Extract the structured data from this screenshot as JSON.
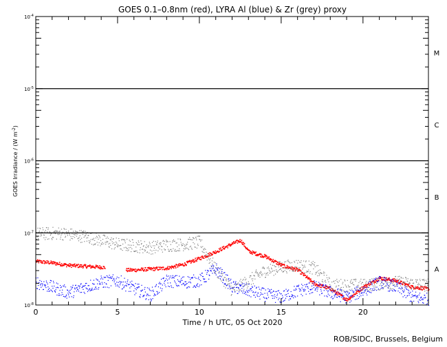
{
  "chart_data": {
    "type": "scatter",
    "title": "GOES 0.1–0.8nm (red), LYRA Al (blue) & Zr (grey) proxy",
    "xlabel": "Time / h UTC, 05 Oct 2020",
    "ylabel": "GOES Irradiance / (W m",
    "ylabel_sup": "-2",
    "ylabel_end": ")",
    "xlim": [
      0,
      24
    ],
    "ylim": [
      1e-08,
      0.0001
    ],
    "yscale": "log",
    "x_ticks": [
      0,
      5,
      10,
      15,
      20
    ],
    "x_tick_labels": [
      "0",
      "5",
      "10",
      "15",
      "20"
    ],
    "y_ticks": [
      0.0001,
      1e-05,
      1e-06,
      1e-07,
      1e-08
    ],
    "y_tick_labels": [
      {
        "base": "10",
        "exp": "-4"
      },
      {
        "base": "10",
        "exp": "-5"
      },
      {
        "base": "10",
        "exp": "-6"
      },
      {
        "base": "10",
        "exp": "-7"
      },
      {
        "base": "10",
        "exp": "-8"
      }
    ],
    "flare_class_lines": [
      1e-05,
      1e-06,
      1e-07
    ],
    "flare_classes": [
      {
        "label": "M",
        "value": 3.16e-05
      },
      {
        "label": "C",
        "value": 3.16e-06
      },
      {
        "label": "B",
        "value": 3.16e-07
      },
      {
        "label": "A",
        "value": 3.16e-08
      }
    ],
    "series": [
      {
        "name": "GOES 0.1-0.8nm",
        "color": "#ff0000",
        "gaps": [
          [
            4.2,
            5.5
          ]
        ],
        "x": [
          0,
          1,
          2,
          3,
          4,
          5.5,
          6,
          7,
          8,
          9,
          10,
          11,
          12,
          12.5,
          13,
          14,
          15,
          16,
          17,
          18,
          19,
          20,
          21,
          22,
          23,
          24
        ],
        "y": [
          4.1e-08,
          3.9e-08,
          3.6e-08,
          3.5e-08,
          3.4e-08,
          3.1e-08,
          3.1e-08,
          3.2e-08,
          3.3e-08,
          3.7e-08,
          4.5e-08,
          5.6e-08,
          7.2e-08,
          8e-08,
          5.6e-08,
          4.8e-08,
          3.6e-08,
          3.1e-08,
          2e-08,
          1.7e-08,
          1.2e-08,
          1.8e-08,
          2.4e-08,
          2.2e-08,
          1.8e-08,
          1.7e-08
        ]
      },
      {
        "name": "LYRA Zr proxy",
        "color": "#808080",
        "gaps": [],
        "x": [
          0,
          1.5,
          3,
          5,
          6,
          7,
          8,
          9,
          10,
          11,
          12,
          13,
          14,
          15,
          16,
          17,
          18,
          20,
          22,
          24
        ],
        "y": [
          9.8e-08,
          1e-07,
          9e-08,
          7e-08,
          6.7e-08,
          6.3e-08,
          6.8e-08,
          7e-08,
          7.5e-08,
          3.1e-08,
          1.6e-08,
          2.2e-08,
          3e-08,
          3.4e-08,
          3.6e-08,
          3.3e-08,
          1.9e-08,
          1.9e-08,
          2.1e-08,
          1.9e-08
        ]
      },
      {
        "name": "LYRA Al proxy",
        "color": "#0000ff",
        "gaps": [],
        "x": [
          0,
          2,
          3,
          4,
          5,
          6,
          7,
          8,
          9,
          10,
          11,
          12,
          13,
          14,
          15,
          16,
          17,
          18,
          19,
          20,
          21,
          22,
          23,
          24
        ],
        "y": [
          2.1e-08,
          1.5e-08,
          1.8e-08,
          2.1e-08,
          2.2e-08,
          1.7e-08,
          1.4e-08,
          2.2e-08,
          2.1e-08,
          2.2e-08,
          3.2e-08,
          1.8e-08,
          1.6e-08,
          1.4e-08,
          1.3e-08,
          1.6e-08,
          1.8e-08,
          1.5e-08,
          1.3e-08,
          1.6e-08,
          2.1e-08,
          1.8e-08,
          1.3e-08,
          1.2e-08
        ]
      }
    ]
  },
  "credit": "ROB/SIDC, Brussels, Belgium"
}
